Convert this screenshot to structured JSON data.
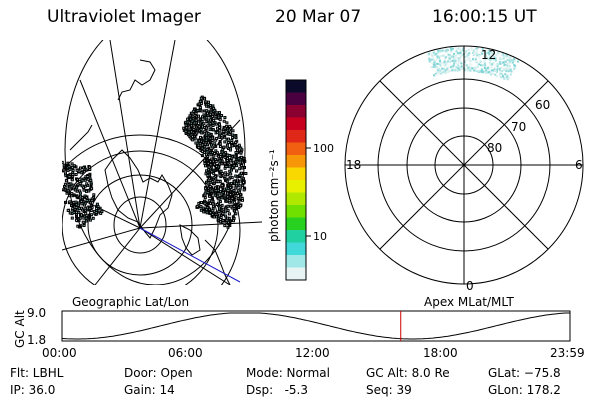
{
  "header": {
    "title": "Ultraviolet Imager",
    "date": "20 Mar 07",
    "time": "16:00:15 UT"
  },
  "colorbar": {
    "label": "photon cm⁻²s⁻¹",
    "ticks": [
      "100",
      "10"
    ],
    "colors": [
      "#0a0a2a",
      "#4a0040",
      "#8a0030",
      "#c80020",
      "#e02818",
      "#f06010",
      "#f89808",
      "#f8d800",
      "#e8f000",
      "#b0e800",
      "#70e000",
      "#28d020",
      "#20d0a0",
      "#40d8d8",
      "#a0e8e8",
      "#e8f4f4"
    ]
  },
  "left_map": {
    "caption": "Geographic Lat/Lon"
  },
  "right_map": {
    "caption": "Apex MLat/MLT",
    "mlt_labels": [
      "12",
      "18",
      "6",
      "0"
    ],
    "mlat_labels": [
      "60",
      "70",
      "80"
    ]
  },
  "altitude_plot": {
    "ylabel": "GC Alt",
    "y_ticks": [
      "9.0",
      "1.8"
    ],
    "x_ticks": [
      "00:00",
      "06:00",
      "12:00",
      "18:00",
      "23:59"
    ],
    "current_time_fraction": 0.6668,
    "marker_color": "#cc0000"
  },
  "info": {
    "flt": "Flt: LBHL",
    "ip": "IP: 36.0",
    "door": "Door: Open",
    "gain": "Gain: 14",
    "mode": "Mode: Normal",
    "dsp": "Dsp:   -5.3",
    "gc_alt": "GC Alt: 8.0 Re",
    "seq": "Seq: 39",
    "glat": "GLat: −75.8",
    "glon": "GLon: 178.2"
  }
}
